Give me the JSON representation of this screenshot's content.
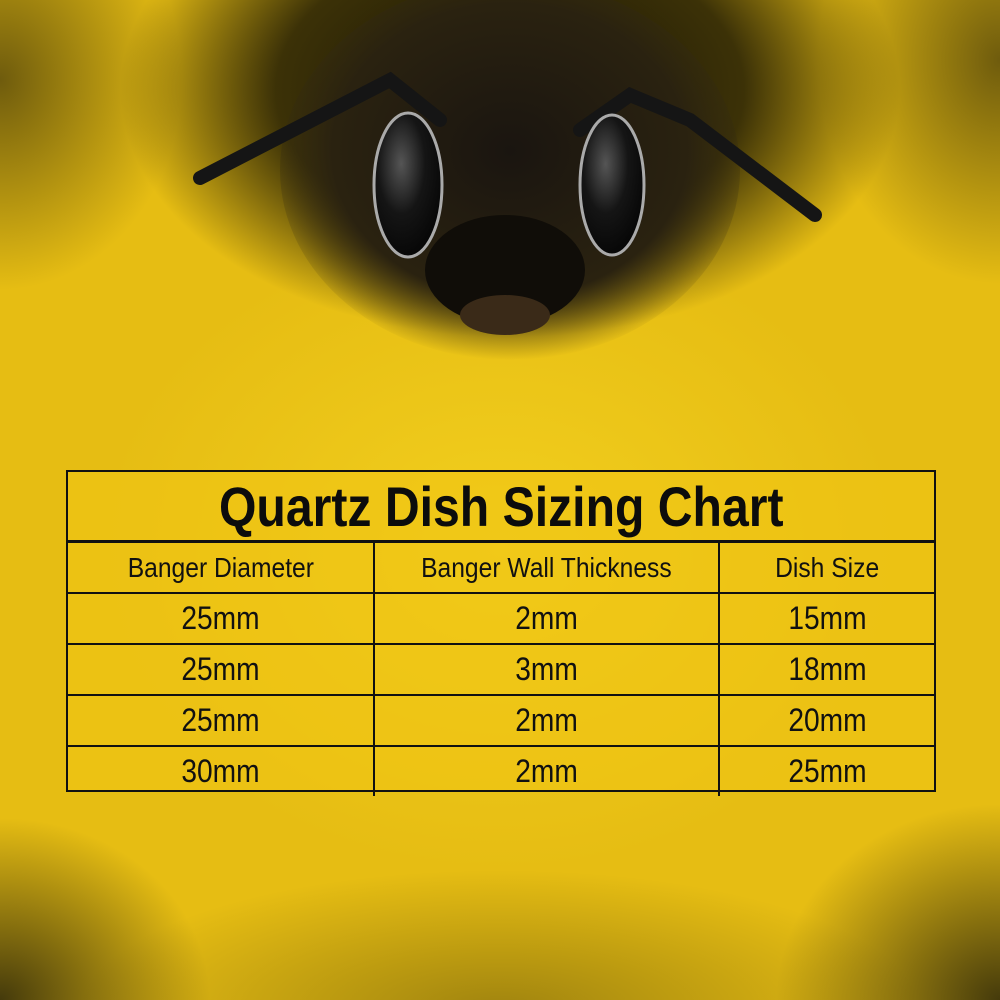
{
  "title": "Quartz Dish Sizing Chart",
  "headers": [
    "Banger Diameter",
    "Banger Wall Thickness",
    "Dish Size"
  ],
  "rows": [
    [
      "25mm",
      "2mm",
      "15mm"
    ],
    [
      "25mm",
      "3mm",
      "18mm"
    ],
    [
      "25mm",
      "2mm",
      "20mm"
    ],
    [
      "30mm",
      "2mm",
      "25mm"
    ]
  ],
  "colors": {
    "background": "#e8bf14",
    "text": "#111111"
  },
  "image": "bee-face-photo"
}
